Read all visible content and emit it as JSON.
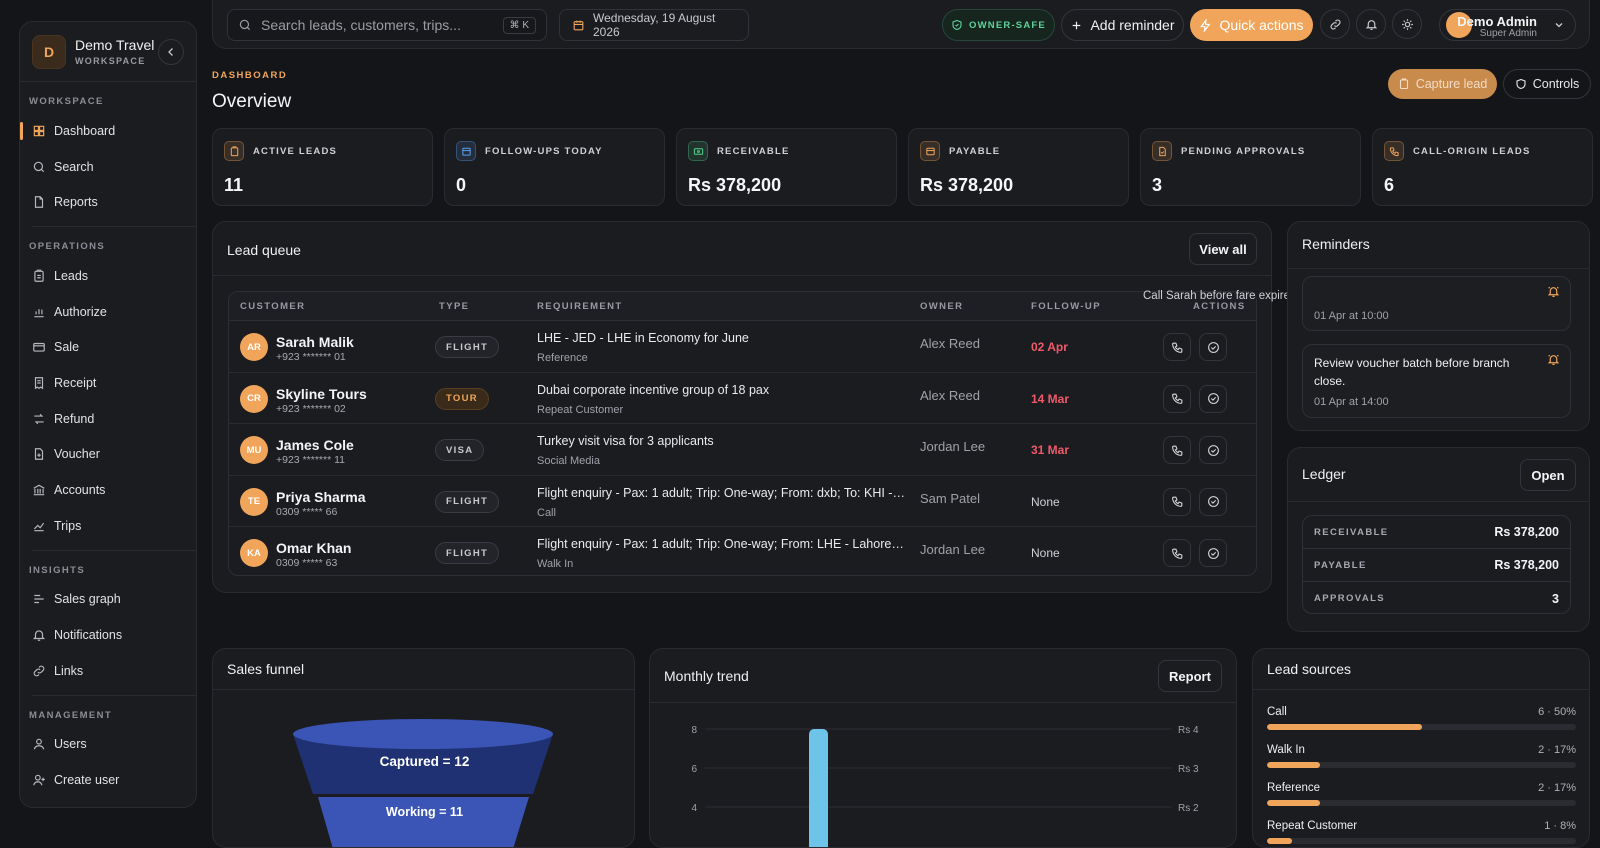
{
  "brand": {
    "initial": "D",
    "name": "Demo Travel",
    "sub": "WORKSPACE"
  },
  "sidebar": {
    "sections": [
      {
        "label": "WORKSPACE",
        "items": [
          {
            "label": "Dashboard",
            "icon": "grid-icon"
          },
          {
            "label": "Search",
            "icon": "search-icon"
          },
          {
            "label": "Reports",
            "icon": "file-icon"
          }
        ]
      },
      {
        "label": "OPERATIONS",
        "items": [
          {
            "label": "Leads",
            "icon": "clipboard-icon"
          },
          {
            "label": "Authorize",
            "icon": "bar-chart-icon"
          },
          {
            "label": "Sale",
            "icon": "card-icon"
          },
          {
            "label": "Receipt",
            "icon": "receipt-icon"
          },
          {
            "label": "Refund",
            "icon": "refresh-icon"
          },
          {
            "label": "Voucher",
            "icon": "file-plus-icon"
          },
          {
            "label": "Accounts",
            "icon": "bank-icon"
          },
          {
            "label": "Trips",
            "icon": "route-icon"
          }
        ]
      },
      {
        "label": "INSIGHTS",
        "items": [
          {
            "label": "Sales graph",
            "icon": "line-chart-icon"
          },
          {
            "label": "Notifications",
            "icon": "bell-icon"
          },
          {
            "label": "Links",
            "icon": "link-icon"
          }
        ]
      },
      {
        "label": "MANAGEMENT",
        "items": [
          {
            "label": "Users",
            "icon": "user-icon"
          },
          {
            "label": "Create user",
            "icon": "user-plus-icon"
          }
        ]
      }
    ]
  },
  "topbar": {
    "search_placeholder": "Search leads, customers, trips...",
    "shortcut": "⌘ K",
    "date": "Wednesday, 19 August 2026",
    "owner_safe": "OWNER-SAFE",
    "add_reminder": "Add reminder",
    "quick_actions": "Quick actions",
    "user_name": "Demo Admin",
    "user_role": "Super Admin"
  },
  "page": {
    "crumb": "DASHBOARD",
    "title": "Overview",
    "capture_lead": "Capture lead",
    "controls": "Controls"
  },
  "stats": [
    {
      "label": "ACTIVE LEADS",
      "value": "11",
      "color": "#f0a55a"
    },
    {
      "label": "FOLLOW-UPS TODAY",
      "value": "0",
      "color": "#5aa0f0"
    },
    {
      "label": "RECEIVABLE",
      "value": "Rs 378,200",
      "color": "#4fd08a"
    },
    {
      "label": "PAYABLE",
      "value": "Rs 378,200",
      "color": "#f0a55a"
    },
    {
      "label": "PENDING APPROVALS",
      "value": "3",
      "color": "#f0a55a"
    },
    {
      "label": "CALL-ORIGIN LEADS",
      "value": "6",
      "color": "#f0a55a"
    }
  ],
  "lead_queue": {
    "title": "Lead queue",
    "view_all": "View all",
    "columns": [
      "CUSTOMER",
      "TYPE",
      "REQUIREMENT",
      "OWNER",
      "FOLLOW-UP",
      "ACTIONS"
    ],
    "rows": [
      {
        "initials": "AR",
        "name": "Sarah Malik",
        "phone": "+923 ******* 01",
        "type": "FLIGHT",
        "requirement": "LHE - JED - LHE in Economy for June",
        "source": "Reference",
        "owner": "Alex Reed",
        "follow_up": "02 Apr"
      },
      {
        "initials": "CR",
        "name": "Skyline Tours",
        "phone": "+923 ******* 02",
        "type": "TOUR",
        "requirement": "Dubai corporate incentive group of 18 pax",
        "source": "Repeat Customer",
        "owner": "Alex Reed",
        "follow_up": "14 Mar"
      },
      {
        "initials": "MU",
        "name": "James Cole",
        "phone": "+923 ******* 11",
        "type": "VISA",
        "requirement": "Turkey visit visa for 3 applicants",
        "source": "Social Media",
        "owner": "Jordan Lee",
        "follow_up": "31 Mar"
      },
      {
        "initials": "TE",
        "name": "Priya Sharma",
        "phone": "0309 ***** 66",
        "type": "FLIGHT",
        "requirement": "Flight enquiry - Pax: 1 adult; Trip: One-way; From: dxb; To: KHI - K...",
        "source": "Call",
        "owner": "Sam Patel",
        "follow_up": "None"
      },
      {
        "initials": "KA",
        "name": "Omar Khan",
        "phone": "0309 ***** 63",
        "type": "FLIGHT",
        "requirement": "Flight enquiry - Pax: 1 adult; Trip: One-way; From: LHE - Lahore; To...",
        "source": "Walk In",
        "owner": "Jordan Lee",
        "follow_up": "None"
      }
    ]
  },
  "tooltip": "Call Sarah before fare expires.",
  "reminders": {
    "title": "Reminders",
    "items": [
      {
        "text": "",
        "time": "01 Apr at 10:00"
      },
      {
        "text": "Review voucher batch before branch close.",
        "time": "01 Apr at 14:00"
      }
    ]
  },
  "ledger": {
    "title": "Ledger",
    "open": "Open",
    "rows": [
      {
        "label": "RECEIVABLE",
        "value": "Rs 378,200"
      },
      {
        "label": "PAYABLE",
        "value": "Rs 378,200"
      },
      {
        "label": "APPROVALS",
        "value": "3"
      }
    ]
  },
  "funnel": {
    "title": "Sales funnel",
    "stages": [
      "Captured = 12",
      "Working = 11"
    ]
  },
  "trend": {
    "title": "Monthly trend",
    "report": "Report"
  },
  "chart_data": {
    "type": "bar",
    "title": "Monthly trend",
    "y_left_ticks": [
      "8",
      "6",
      "4"
    ],
    "y_right_ticks": [
      "Rs 4",
      "Rs 3",
      "Rs 2"
    ],
    "series": [
      {
        "values": [
          8
        ]
      }
    ],
    "ylim": [
      0,
      8
    ]
  },
  "lead_sources": {
    "title": "Lead sources",
    "items": [
      {
        "label": "Call",
        "value": "6 · 50%",
        "fraction": 0.5
      },
      {
        "label": "Walk In",
        "value": "2 · 17%",
        "fraction": 0.17
      },
      {
        "label": "Reference",
        "value": "2 · 17%",
        "fraction": 0.17
      },
      {
        "label": "Repeat Customer",
        "value": "1 · 8%",
        "fraction": 0.08
      }
    ]
  }
}
